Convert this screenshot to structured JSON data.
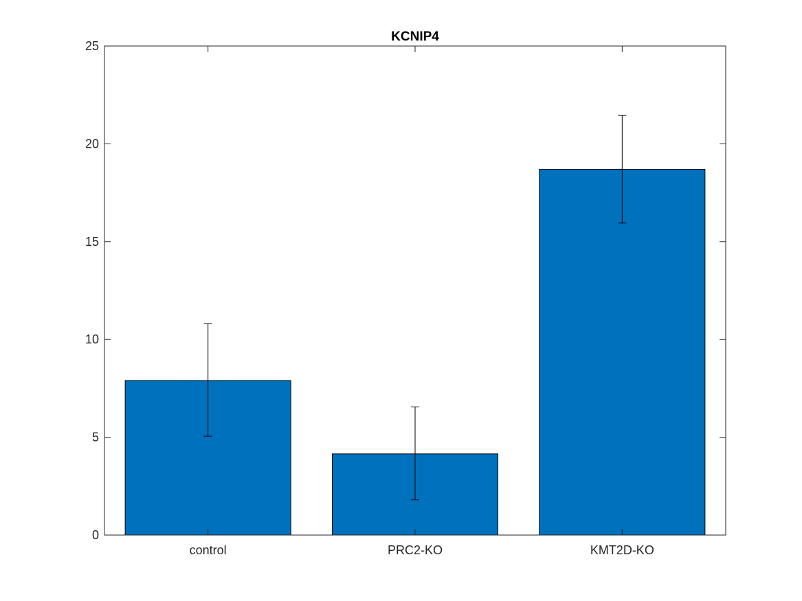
{
  "chart_data": {
    "type": "bar",
    "title": "KCNIP4",
    "xlabel": "",
    "ylabel": "",
    "categories": [
      "control",
      "PRC2-KO",
      "KMT2D-KO"
    ],
    "values": [
      7.9,
      4.15,
      18.7
    ],
    "error_bars": [
      {
        "low": 5.05,
        "high": 10.8
      },
      {
        "low": 1.8,
        "high": 6.55
      },
      {
        "low": 15.95,
        "high": 21.45
      }
    ],
    "ylim": [
      0,
      25
    ],
    "yticks": [
      0,
      5,
      10,
      15,
      20,
      25
    ],
    "grid": false,
    "legend": "none",
    "bar_color": "#0072BD",
    "edge_color": "#000000"
  }
}
